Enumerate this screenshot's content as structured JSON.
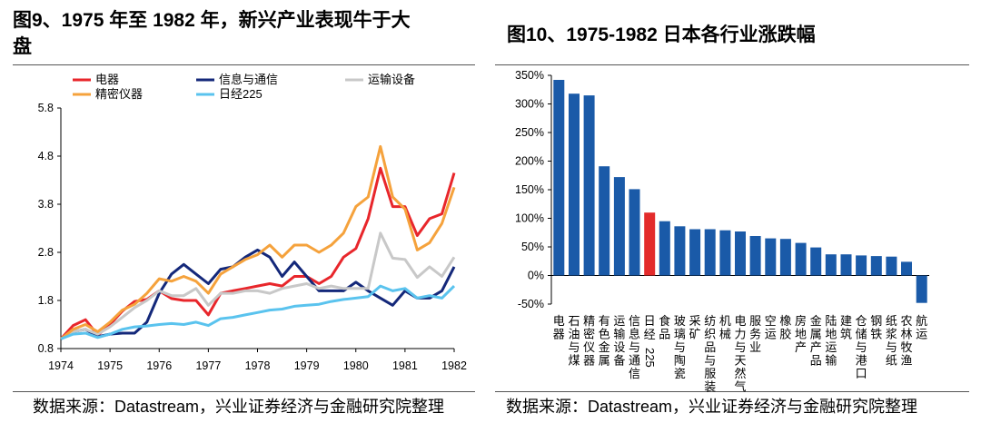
{
  "left": {
    "title_line1": "图9、1975 年至 1982 年，新兴产业表现牛于大",
    "title_line2": "盘",
    "source": "数据来源：Datastream，兴业证券经济与金融研究院整理"
  },
  "right": {
    "title": "图10、1975-1982 日本各行业涨跌幅",
    "source": "数据来源：Datastream，兴业证券经济与金融研究院整理"
  },
  "chart_data": [
    {
      "type": "line",
      "x_ticks": [
        "1974",
        "1975",
        "1976",
        "1977",
        "1978",
        "1979",
        "1980",
        "1981",
        "1982"
      ],
      "y_ticks": [
        "0.8",
        "1.8",
        "2.8",
        "3.8",
        "4.8",
        "5.8"
      ],
      "ylim": [
        0.8,
        5.8
      ],
      "xlim": [
        1974,
        1982
      ],
      "legend_position": "top",
      "x": [
        1974,
        1974.25,
        1974.5,
        1974.75,
        1975,
        1975.25,
        1975.5,
        1975.75,
        1976,
        1976.25,
        1976.5,
        1976.75,
        1977,
        1977.25,
        1977.5,
        1977.75,
        1978,
        1978.25,
        1978.5,
        1978.75,
        1979,
        1979.25,
        1979.5,
        1979.75,
        1980,
        1980.25,
        1980.5,
        1980.75,
        1981,
        1981.25,
        1981.5,
        1981.75,
        1982
      ],
      "series": [
        {
          "name": "电器",
          "color": "#e8262b",
          "values": [
            1.0,
            1.28,
            1.4,
            1.08,
            1.3,
            1.58,
            1.78,
            1.82,
            2.0,
            1.84,
            1.8,
            1.8,
            1.5,
            1.95,
            2.0,
            2.05,
            2.1,
            2.15,
            2.1,
            2.3,
            2.3,
            2.15,
            2.3,
            2.7,
            2.88,
            3.5,
            4.55,
            3.75,
            3.75,
            3.15,
            3.5,
            3.6,
            4.45
          ]
        },
        {
          "name": "信息与通信",
          "color": "#14287a",
          "values": [
            1.0,
            1.15,
            1.2,
            1.05,
            1.1,
            1.12,
            1.12,
            1.35,
            1.95,
            2.35,
            2.55,
            2.35,
            2.15,
            2.45,
            2.5,
            2.7,
            2.85,
            2.7,
            2.3,
            2.6,
            2.3,
            2.0,
            2.0,
            2.0,
            2.18,
            2.0,
            1.85,
            1.7,
            2.0,
            1.85,
            1.85,
            2.0,
            2.5
          ]
        },
        {
          "name": "运输设备",
          "color": "#c8c8c8",
          "values": [
            1.0,
            1.15,
            1.2,
            1.1,
            1.25,
            1.45,
            1.65,
            1.8,
            2.0,
            1.9,
            1.9,
            2.05,
            1.7,
            1.95,
            1.95,
            2.0,
            2.0,
            1.95,
            2.05,
            2.1,
            2.15,
            2.05,
            2.1,
            2.05,
            2.05,
            2.05,
            3.2,
            2.68,
            2.65,
            2.28,
            2.5,
            2.3,
            2.7
          ]
        },
        {
          "name": "精密仪器",
          "color": "#f5a23c",
          "values": [
            1.0,
            1.2,
            1.3,
            1.15,
            1.35,
            1.6,
            1.72,
            1.95,
            2.25,
            2.2,
            2.3,
            2.2,
            1.95,
            2.35,
            2.5,
            2.65,
            2.75,
            2.95,
            2.7,
            2.95,
            2.95,
            2.8,
            2.95,
            3.2,
            3.75,
            3.95,
            5.0,
            3.95,
            3.7,
            2.85,
            3.0,
            3.4,
            4.15
          ]
        },
        {
          "name": "日经225",
          "color": "#5ac3ee",
          "values": [
            1.0,
            1.1,
            1.12,
            1.03,
            1.1,
            1.2,
            1.25,
            1.27,
            1.3,
            1.32,
            1.3,
            1.35,
            1.28,
            1.42,
            1.45,
            1.5,
            1.55,
            1.6,
            1.62,
            1.68,
            1.7,
            1.72,
            1.78,
            1.82,
            1.85,
            1.88,
            2.1,
            2.0,
            2.05,
            1.85,
            1.9,
            1.85,
            2.1
          ]
        }
      ]
    },
    {
      "type": "bar",
      "y_ticks": [
        "350%",
        "300%",
        "250%",
        "200%",
        "150%",
        "100%",
        "50%",
        "0%",
        "-50%"
      ],
      "ylim": [
        -50,
        350
      ],
      "categories": [
        "电器",
        "石油与煤",
        "精密仪器",
        "有色金属",
        "运输设备",
        "信息与通信",
        "日经225",
        "食品",
        "玻璃与陶瓷",
        "采矿",
        "纺织品与服装",
        "机械",
        "电力与天然气",
        "服务业",
        "空运",
        "橡胶",
        "房地产",
        "金属产品",
        "陆地运输",
        "建筑",
        "仓储与港口",
        "钢铁",
        "纸浆与纸",
        "农林牧渔",
        "航运"
      ],
      "values": [
        342,
        318,
        315,
        191,
        172,
        151,
        110,
        95,
        86,
        81,
        81,
        79,
        77,
        69,
        65,
        64,
        57,
        49,
        37,
        37,
        35,
        34,
        33,
        24,
        -48
      ],
      "bar_color": "#1a5aa8",
      "highlight_color": "#e32b2b",
      "highlight_index": 6
    }
  ]
}
